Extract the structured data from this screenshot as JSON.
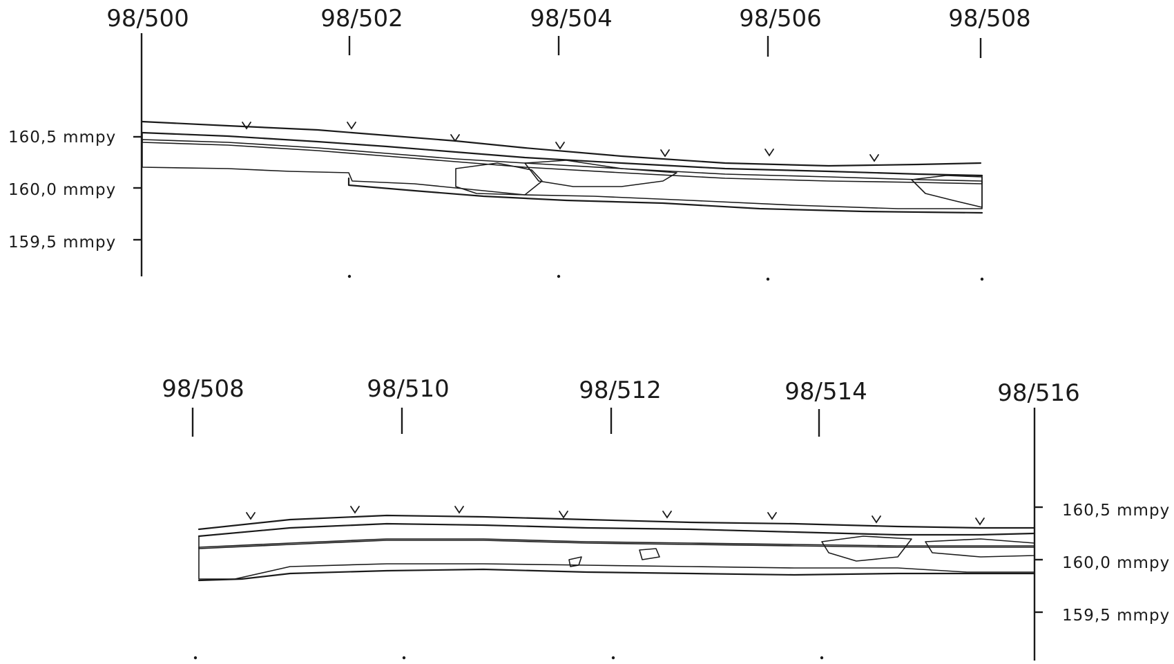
{
  "profiles": [
    {
      "stations": [
        "98/500",
        "98/502",
        "98/504",
        "98/506",
        "98/508"
      ],
      "elevations": [
        "160,5 mmpy",
        "160,0 mmpy",
        "159,5 mmpy"
      ]
    },
    {
      "stations": [
        "98/508",
        "98/510",
        "98/512",
        "98/514",
        "98/516"
      ],
      "elevations": [
        "160,5 mmpy",
        "160,0 mmpy",
        "159,5 mmpy"
      ]
    }
  ],
  "icons": {
    "grass": "v-mark",
    "hatch_vertical": "vertical-line-hatch",
    "hatch_diagonal": "diagonal-line-hatch",
    "hatch_horizontal": "horizontal-line-hatch"
  }
}
